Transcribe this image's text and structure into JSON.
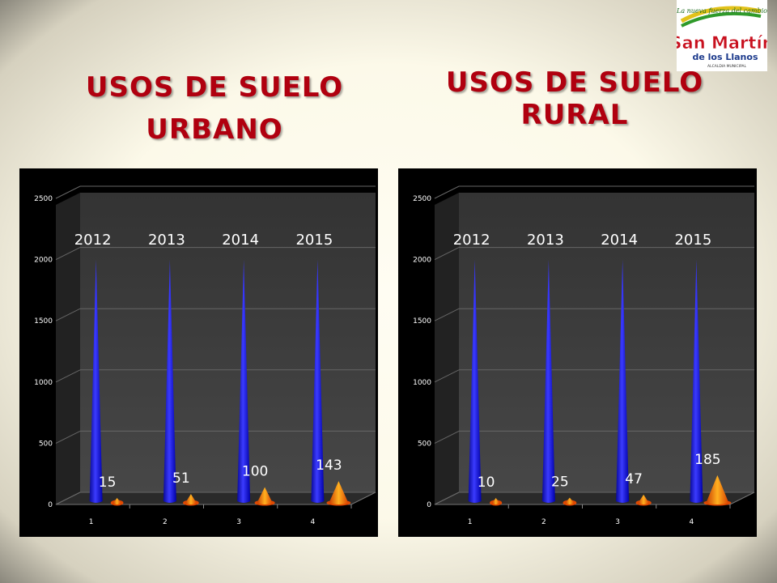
{
  "titles": {
    "urbano": "Usos de Suelo Urbano",
    "rural": "Usos de Suelo Rural"
  },
  "logo": {
    "tagline": "La nueva fuerza del cambio",
    "name": "San Martín",
    "sub": "de los Llanos",
    "caption": "ALCALDIA MUNICIPAL"
  },
  "colors": {
    "title": "#b0000f",
    "blue_cone": "#1a1aff",
    "orange_cone": "#ff6a00",
    "chart_bg": "#000000",
    "wall": "#3a3a3a"
  },
  "chart_data": [
    {
      "type": "bar",
      "shape": "cone-3d",
      "categories": [
        "1",
        "2",
        "3",
        "4"
      ],
      "category_labels": [
        "2012",
        "2013",
        "2014",
        "2015"
      ],
      "series": [
        {
          "values": [
            2000,
            2000,
            2000,
            2000
          ],
          "color": "#1a1aff"
        },
        {
          "values": [
            15,
            51,
            100,
            143
          ],
          "color": "#ff6a00"
        }
      ],
      "data_labels": [
        "15",
        "51",
        "100",
        "143"
      ],
      "yticks": [
        0,
        500,
        1000,
        1500,
        2000,
        2500
      ],
      "ylim": [
        0,
        2500
      ],
      "grid": true
    },
    {
      "type": "bar",
      "shape": "cone-3d",
      "categories": [
        "1",
        "2",
        "3",
        "4"
      ],
      "category_labels": [
        "2012",
        "2013",
        "2014",
        "2015"
      ],
      "series": [
        {
          "values": [
            2000,
            2000,
            2000,
            2000
          ],
          "color": "#1a1aff"
        },
        {
          "values": [
            10,
            25,
            47,
            185
          ],
          "color": "#ff6a00"
        }
      ],
      "data_labels": [
        "10",
        "25",
        "47",
        "185"
      ],
      "yticks": [
        0,
        500,
        1000,
        1500,
        2000,
        2500
      ],
      "ylim": [
        0,
        2500
      ],
      "grid": true
    }
  ]
}
